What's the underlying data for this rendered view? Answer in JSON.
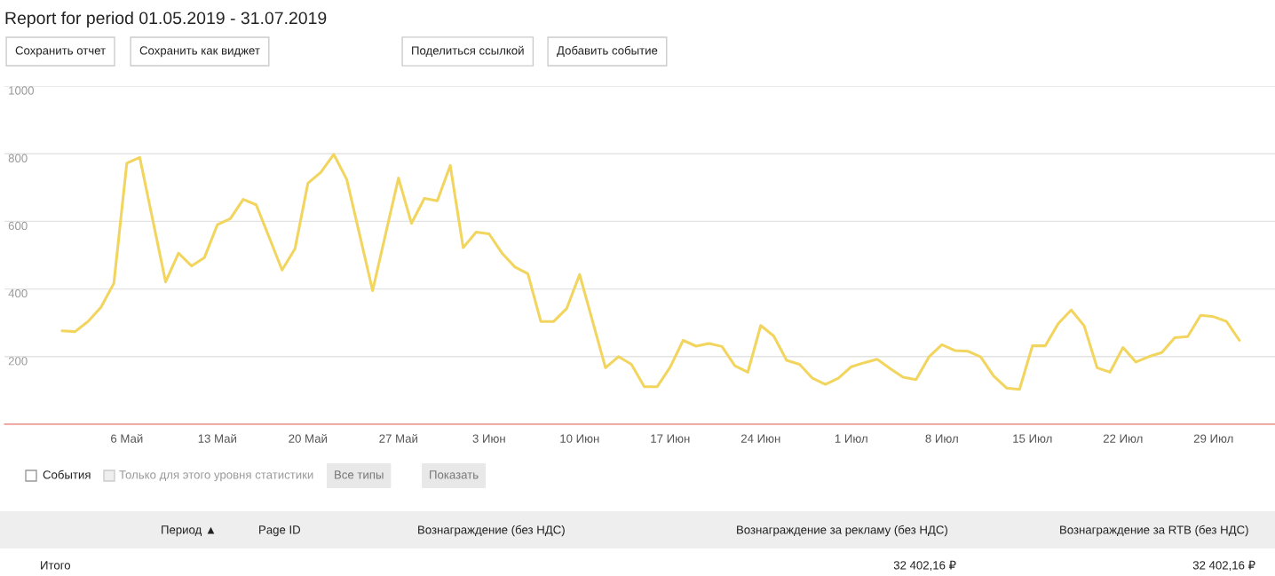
{
  "chart_data": {
    "type": "line",
    "title": "Report for period 01.05.2019 - 31.07.2019",
    "annotations": [
      "Сохранить отчет",
      "Сохранить как виджет",
      "Поделиться ссылкой",
      "Добавить событие",
      "События",
      "Только для этого уровня статистики",
      "Все типы",
      "Показать",
      "Период ▲",
      "Page ID",
      "Вознаграждение (без НДС)",
      "Вознаграждение за рекламу (без НДС)",
      "Вознаграждение за RTB (без НДС)",
      "Итого",
      "32 402,16 ₽",
      "32 402,16 ₽"
    ],
    "x": [
      "2019-05-01",
      "2019-05-02",
      "2019-05-03",
      "2019-05-04",
      "2019-05-05",
      "2019-05-06",
      "2019-05-07",
      "2019-05-08",
      "2019-05-09",
      "2019-05-10",
      "2019-05-11",
      "2019-05-12",
      "2019-05-13",
      "2019-05-14",
      "2019-05-15",
      "2019-05-16",
      "2019-05-17",
      "2019-05-18",
      "2019-05-19",
      "2019-05-20",
      "2019-05-21",
      "2019-05-22",
      "2019-05-23",
      "2019-05-24",
      "2019-05-25",
      "2019-05-26",
      "2019-05-27",
      "2019-05-28",
      "2019-05-29",
      "2019-05-30",
      "2019-05-31",
      "2019-06-01",
      "2019-06-02",
      "2019-06-03",
      "2019-06-04",
      "2019-06-05",
      "2019-06-06",
      "2019-06-07",
      "2019-06-08",
      "2019-06-09",
      "2019-06-10",
      "2019-06-11",
      "2019-06-12",
      "2019-06-13",
      "2019-06-14",
      "2019-06-15",
      "2019-06-16",
      "2019-06-17",
      "2019-06-18",
      "2019-06-19",
      "2019-06-20",
      "2019-06-21",
      "2019-06-22",
      "2019-06-23",
      "2019-06-24",
      "2019-06-25",
      "2019-06-26",
      "2019-06-27",
      "2019-06-28",
      "2019-06-29",
      "2019-06-30",
      "2019-07-01",
      "2019-07-02",
      "2019-07-03",
      "2019-07-04",
      "2019-07-05",
      "2019-07-06",
      "2019-07-07",
      "2019-07-08",
      "2019-07-09",
      "2019-07-10",
      "2019-07-11",
      "2019-07-12",
      "2019-07-13",
      "2019-07-14",
      "2019-07-15",
      "2019-07-16",
      "2019-07-17",
      "2019-07-18",
      "2019-07-19",
      "2019-07-20",
      "2019-07-21",
      "2019-07-22",
      "2019-07-23",
      "2019-07-24",
      "2019-07-25",
      "2019-07-26",
      "2019-07-27",
      "2019-07-28",
      "2019-07-29",
      "2019-07-30",
      "2019-07-31"
    ],
    "series": [
      {
        "color": "#f2d55e",
        "values": [
          276,
          274,
          304,
          346,
          417,
          772,
          789,
          605,
          421,
          506,
          468,
          493,
          590,
          608,
          665,
          649,
          553,
          456,
          519,
          713,
          745,
          798,
          724,
          560,
          395,
          562,
          728,
          594,
          668,
          661,
          765,
          522,
          568,
          563,
          506,
          465,
          445,
          304,
          304,
          342,
          443,
          305,
          167,
          200,
          177,
          111,
          111,
          169,
          248,
          231,
          239,
          230,
          173,
          154,
          292,
          261,
          189,
          177,
          136,
          118,
          136,
          170,
          182,
          192,
          165,
          139,
          132,
          199,
          235,
          218,
          216,
          199,
          143,
          107,
          103,
          232,
          232,
          298,
          338,
          291,
          167,
          154,
          227,
          184,
          200,
          212,
          256,
          259,
          322,
          318,
          304,
          248
        ]
      }
    ],
    "ylim": [
      0,
      1000
    ],
    "yticks": [
      {
        "value": 0,
        "label": null
      },
      200,
      400,
      600,
      800,
      1000
    ],
    "xlim": [
      "2019-04-26T13:00",
      "2019-08-02T18:00"
    ],
    "xticks": [
      {
        "value": "2019-05-06",
        "label": "6 Май"
      },
      {
        "value": "2019-05-13",
        "label": "13 Май"
      },
      {
        "value": "2019-05-20",
        "label": "20 Май"
      },
      {
        "value": "2019-05-27",
        "label": "27 Май"
      },
      {
        "value": "2019-06-03",
        "label": "3 Июн"
      },
      {
        "value": "2019-06-10",
        "label": "10 Июн"
      },
      {
        "value": "2019-06-17",
        "label": "17 Июн"
      },
      {
        "value": "2019-06-24",
        "label": "24 Июн"
      },
      {
        "value": "2019-07-01",
        "label": "1 Июл"
      },
      {
        "value": "2019-07-08",
        "label": "8 Июл"
      },
      {
        "value": "2019-07-15",
        "label": "15 Июл"
      },
      {
        "value": "2019-07-22",
        "label": "22 Июл"
      },
      {
        "value": "2019-07-29",
        "label": "29 Июл"
      }
    ],
    "grid": "y",
    "legend": false,
    "marker": "none",
    "line_style": "solid"
  }
}
